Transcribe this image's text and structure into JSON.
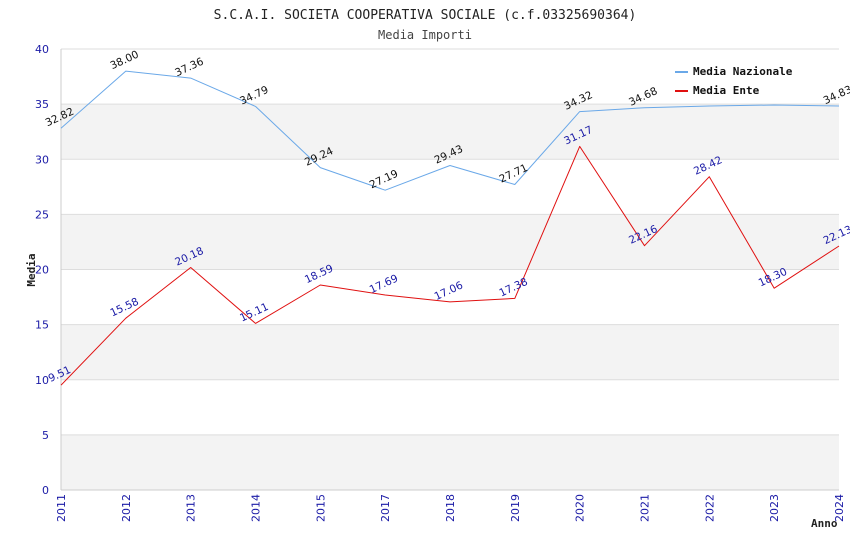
{
  "chart_data": {
    "type": "line",
    "title": "S.C.A.I. SOCIETA COOPERATIVA SOCIALE (c.f.03325690364)",
    "subtitle": "Media Importi",
    "xlabel": "Anno",
    "ylabel": "Media",
    "categories": [
      "2011",
      "2012",
      "2013",
      "2014",
      "2015",
      "2017",
      "2018",
      "2019",
      "2020",
      "2021",
      "2022",
      "2023",
      "2024"
    ],
    "ylim": [
      0,
      40
    ],
    "yticks": [
      "0",
      "5",
      "10",
      "15",
      "20",
      "25",
      "30",
      "35",
      "40"
    ],
    "grid": true,
    "legend_position": "top-right",
    "series": [
      {
        "name": "Media Nazionale",
        "color": "#6aa8e8",
        "values": [
          32.82,
          38.0,
          37.36,
          34.79,
          29.24,
          27.19,
          29.43,
          27.71,
          34.32,
          34.68,
          34.83,
          34.92,
          34.83
        ],
        "labels": [
          "32.82",
          "38.00",
          "37.36",
          "34.79",
          "29.24",
          "27.19",
          "29.43",
          "27.71",
          "34.32",
          "34.68",
          "",
          "",
          "34.83"
        ]
      },
      {
        "name": "Media Ente",
        "color": "#e01010",
        "values": [
          9.51,
          15.58,
          20.18,
          15.11,
          18.59,
          17.69,
          17.06,
          17.38,
          31.17,
          22.16,
          28.42,
          18.3,
          22.13
        ],
        "labels": [
          "9.51",
          "15.58",
          "20.18",
          "15.11",
          "18.59",
          "17.69",
          "17.06",
          "17.38",
          "31.17",
          "22.16",
          "28.42",
          "18.30",
          "22.13"
        ]
      }
    ]
  }
}
